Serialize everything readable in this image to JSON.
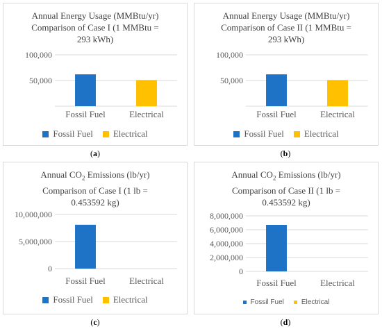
{
  "colors": {
    "fossil": "#1f73c6",
    "electrical": "#ffc000",
    "grid": "#d9d9d9",
    "text": "#595959"
  },
  "panels": [
    {
      "title_lines": [
        "Annual Energy Usage (MMBtu/yr)",
        "Comparison of Case I  (1 MMBtu =",
        "293 kWh)"
      ],
      "caption": "a"
    },
    {
      "title_lines": [
        "Annual Energy Usage (MMBtu/yr)",
        "Comparison of Case II (1 MMBtu =",
        "293 kWh)"
      ],
      "caption": "b"
    },
    {
      "title_lines": [
        "Annual CO2 Emissions (lb/yr)",
        "Comparison of Case I (1 lb =",
        "0.453592 kg)"
      ],
      "caption": "c"
    },
    {
      "title_lines": [
        "Annual CO2 Emissions (lb/yr)",
        "Comparison of Case II (1 lb =",
        "0.453592 kg)"
      ],
      "caption": "d"
    }
  ],
  "chart_data": [
    {
      "type": "bar",
      "title": "Annual Energy Usage (MMBtu/yr) Comparison of Case I  (1 MMBtu = 293 kWh)",
      "categories": [
        "Fossil Fuel",
        "Electrical"
      ],
      "values": [
        62000,
        51000
      ],
      "ylim": [
        0,
        100000
      ],
      "yticks": [
        50000,
        100000
      ],
      "ytick_labels": [
        "50,000",
        "100,000"
      ],
      "legend": [
        "Fossil Fuel",
        "Electrical"
      ],
      "legend_position": "bottom",
      "grid": true
    },
    {
      "type": "bar",
      "title": "Annual Energy Usage (MMBtu/yr) Comparison of Case II (1 MMBtu = 293 kWh)",
      "categories": [
        "Fossil Fuel",
        "Electrical"
      ],
      "values": [
        62000,
        51000
      ],
      "ylim": [
        0,
        100000
      ],
      "yticks": [
        50000,
        100000
      ],
      "ytick_labels": [
        "50,000",
        "100,000"
      ],
      "legend": [
        "Fossil Fuel",
        "Electrical"
      ],
      "legend_position": "bottom",
      "grid": true
    },
    {
      "type": "bar",
      "title": "Annual CO2 Emissions (lb/yr) Comparison of Case I (1 lb = 0.453592 kg)",
      "categories": [
        "Fossil Fuel",
        "Electrical"
      ],
      "values": [
        8100000,
        0
      ],
      "ylim": [
        0,
        10000000
      ],
      "yticks": [
        0,
        5000000,
        10000000
      ],
      "ytick_labels": [
        "0",
        "5,000,000",
        "10,000,000"
      ],
      "legend": [
        "Fossil Fuel",
        "Electrical"
      ],
      "legend_position": "bottom",
      "grid": true
    },
    {
      "type": "bar",
      "title": "Annual CO2 Emissions (lb/yr) Comparison of Case II (1 lb = 0.453592 kg)",
      "categories": [
        "Fossil Fuel",
        "Electrical"
      ],
      "values": [
        6700000,
        0
      ],
      "ylim": [
        0,
        8000000
      ],
      "yticks": [
        0,
        2000000,
        4000000,
        6000000,
        8000000
      ],
      "ytick_labels": [
        "0",
        "2,000,000",
        "4,000,000",
        "6,000,000",
        "8,000,000"
      ],
      "legend": [
        "Fossil Fuel",
        "Electrical"
      ],
      "legend_position": "bottom",
      "grid": true
    }
  ]
}
